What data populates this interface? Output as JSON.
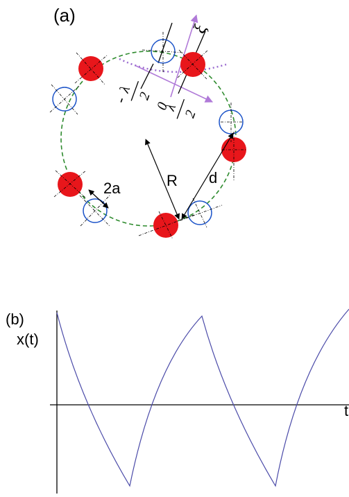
{
  "panel_a": {
    "label": "(a)",
    "R_label": "R",
    "d_label": "d",
    "diameter_label": "2a",
    "xi_label": "ξ",
    "zero_label": "0",
    "neg_half_lambda": {
      "minus": "-",
      "num": "λ",
      "den": "2"
    },
    "pos_half_lambda": {
      "num": "λ",
      "den": "2"
    },
    "colors": {
      "filled_sphere": "#e8161b",
      "hollow_sphere": "#1a52c8",
      "ring": "#2e8b2e",
      "arrows_purple": "#b07ad8",
      "dotted_purple": "#9a6bd0"
    }
  },
  "panel_b": {
    "label": "(b)",
    "ylabel": "x(t)",
    "xlabel": "t",
    "line_color": "#4a4aa8"
  }
}
